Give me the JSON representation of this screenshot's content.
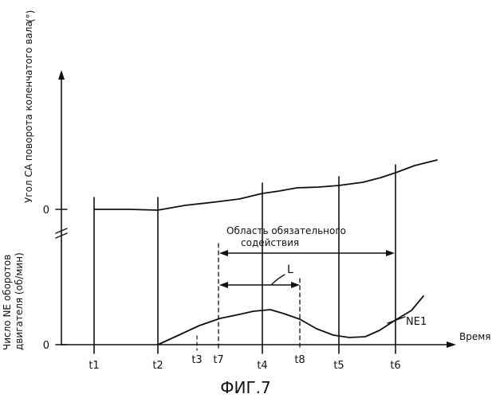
{
  "figure": {
    "caption": "ФИГ.7"
  },
  "axes": {
    "upper_ylabel": "Угол CA поворота коленчатого вала",
    "upper_unit": "(°)",
    "lower_ylabel_line1": "Число NE оборотов",
    "lower_ylabel_line2": "двигателя (об/мин)",
    "xlabel": "Время",
    "upper_zero": "0",
    "lower_zero": "0"
  },
  "time_marks": [
    "t1",
    "t2",
    "t3",
    "t7",
    "t4",
    "t8",
    "t5",
    "t6"
  ],
  "annotations": {
    "region_line1": "Область обязательного",
    "region_line2": "содействия",
    "interval_L": "L",
    "curve_NE1": "NE1"
  }
}
